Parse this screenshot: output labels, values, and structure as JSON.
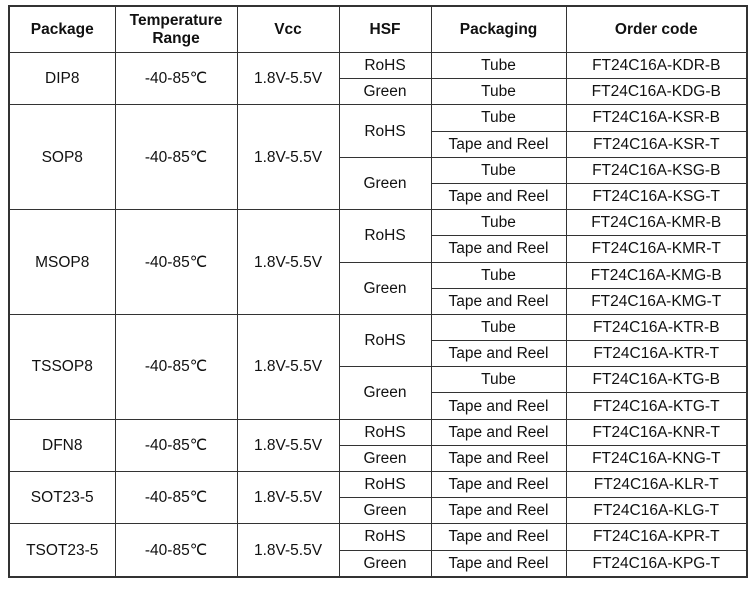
{
  "headers": [
    "Package",
    "Temperature Range",
    "Vcc",
    "HSF",
    "Packaging",
    "Order code"
  ],
  "packages": [
    {
      "name": "DIP8",
      "temp": "-40-85℃",
      "vcc": "1.8V-5.5V",
      "groups": [
        {
          "hsf": "RoHS",
          "rows": [
            {
              "packaging": "Tube",
              "code": "FT24C16A-KDR-B"
            }
          ]
        },
        {
          "hsf": "Green",
          "rows": [
            {
              "packaging": "Tube",
              "code": "FT24C16A-KDG-B"
            }
          ]
        }
      ]
    },
    {
      "name": "SOP8",
      "temp": "-40-85℃",
      "vcc": "1.8V-5.5V",
      "groups": [
        {
          "hsf": "RoHS",
          "rows": [
            {
              "packaging": "Tube",
              "code": "FT24C16A-KSR-B"
            },
            {
              "packaging": "Tape and Reel",
              "code": "FT24C16A-KSR-T"
            }
          ]
        },
        {
          "hsf": "Green",
          "rows": [
            {
              "packaging": "Tube",
              "code": "FT24C16A-KSG-B"
            },
            {
              "packaging": "Tape and Reel",
              "code": "FT24C16A-KSG-T"
            }
          ]
        }
      ]
    },
    {
      "name": "MSOP8",
      "temp": "-40-85℃",
      "vcc": "1.8V-5.5V",
      "groups": [
        {
          "hsf": "RoHS",
          "rows": [
            {
              "packaging": "Tube",
              "code": "FT24C16A-KMR-B"
            },
            {
              "packaging": "Tape and Reel",
              "code": "FT24C16A-KMR-T"
            }
          ]
        },
        {
          "hsf": "Green",
          "rows": [
            {
              "packaging": "Tube",
              "code": "FT24C16A-KMG-B"
            },
            {
              "packaging": "Tape and Reel",
              "code": "FT24C16A-KMG-T"
            }
          ]
        }
      ]
    },
    {
      "name": "TSSOP8",
      "temp": "-40-85℃",
      "vcc": "1.8V-5.5V",
      "groups": [
        {
          "hsf": "RoHS",
          "rows": [
            {
              "packaging": "Tube",
              "code": "FT24C16A-KTR-B"
            },
            {
              "packaging": "Tape and Reel",
              "code": "FT24C16A-KTR-T"
            }
          ]
        },
        {
          "hsf": "Green",
          "rows": [
            {
              "packaging": "Tube",
              "code": "FT24C16A-KTG-B"
            },
            {
              "packaging": "Tape and Reel",
              "code": "FT24C16A-KTG-T"
            }
          ]
        }
      ]
    },
    {
      "name": "DFN8",
      "temp": "-40-85℃",
      "vcc": "1.8V-5.5V",
      "groups": [
        {
          "hsf": "RoHS",
          "rows": [
            {
              "packaging": "Tape and Reel",
              "code": "FT24C16A-KNR-T"
            }
          ]
        },
        {
          "hsf": "Green",
          "rows": [
            {
              "packaging": "Tape and Reel",
              "code": "FT24C16A-KNG-T"
            }
          ]
        }
      ]
    },
    {
      "name": "SOT23-5",
      "temp": "-40-85℃",
      "vcc": "1.8V-5.5V",
      "groups": [
        {
          "hsf": "RoHS",
          "rows": [
            {
              "packaging": "Tape and Reel",
              "code": "FT24C16A-KLR-T"
            }
          ]
        },
        {
          "hsf": "Green",
          "rows": [
            {
              "packaging": "Tape and Reel",
              "code": "FT24C16A-KLG-T"
            }
          ]
        }
      ]
    },
    {
      "name": "TSOT23-5",
      "temp": "-40-85℃",
      "vcc": "1.8V-5.5V",
      "groups": [
        {
          "hsf": "RoHS",
          "rows": [
            {
              "packaging": "Tape and Reel",
              "code": "FT24C16A-KPR-T"
            }
          ]
        },
        {
          "hsf": "Green",
          "rows": [
            {
              "packaging": "Tape and Reel",
              "code": "FT24C16A-KPG-T"
            }
          ]
        }
      ]
    }
  ]
}
